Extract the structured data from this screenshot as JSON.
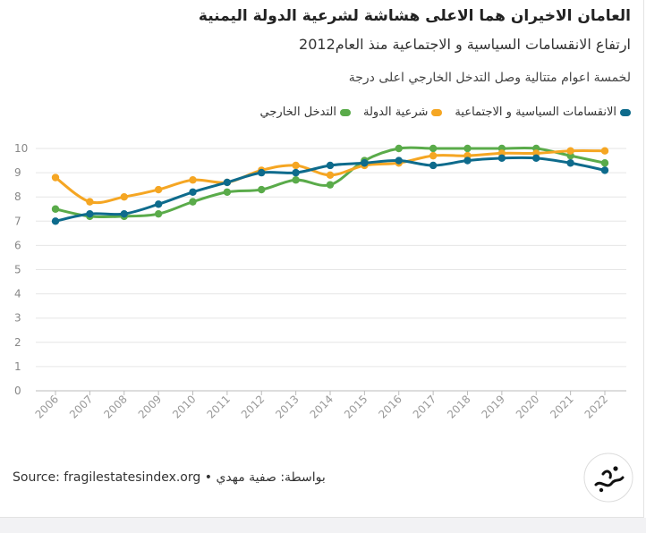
{
  "title": "العامان الاخيران هما الاعلى هشاشة لشرعية الدولة اليمنية",
  "subtitle": "ارتفاع الانقسامات السياسية و الاجتماعية منذ العام2012",
  "note": "لخمسة اعوام متتالية وصل التدخل الخارجي اعلى درجة",
  "footer": {
    "source": "Source: fragilestatesindex.org",
    "separator": " • ",
    "credit": "بواسطة: صفية مهدي"
  },
  "logo": {
    "icon": "brand-logo-icon"
  },
  "chart_data": {
    "type": "line",
    "x": [
      "2006",
      "2007",
      "2008",
      "2009",
      "2010",
      "2011",
      "2012",
      "2013",
      "2014",
      "2015",
      "2016",
      "2017",
      "2018",
      "2019",
      "2020",
      "2021",
      "2022"
    ],
    "ylim": [
      0,
      10
    ],
    "yticks": [
      0,
      1,
      2,
      3,
      4,
      5,
      6,
      7,
      8,
      9,
      10
    ],
    "grid": true,
    "legend_position": "top-right",
    "series": [
      {
        "name": "الانقسامات السياسية و الاجتماعية",
        "color": "#0e6b8c",
        "values": [
          7.0,
          7.3,
          7.3,
          7.7,
          8.2,
          8.6,
          9.0,
          9.0,
          9.3,
          9.4,
          9.5,
          9.3,
          9.5,
          9.6,
          9.6,
          9.4,
          9.1
        ]
      },
      {
        "name": "شرعية الدولة",
        "color": "#f5a623",
        "values": [
          8.8,
          7.8,
          8.0,
          8.3,
          8.7,
          8.6,
          9.1,
          9.3,
          8.9,
          9.3,
          9.4,
          9.7,
          9.7,
          9.8,
          9.8,
          9.9,
          9.9
        ]
      },
      {
        "name": "التدخل الخارجي",
        "color": "#5aab4a",
        "values": [
          7.5,
          7.2,
          7.2,
          7.3,
          7.8,
          8.2,
          8.3,
          8.7,
          8.5,
          9.5,
          10.0,
          10.0,
          10.0,
          10.0,
          10.0,
          9.7,
          9.4
        ]
      }
    ]
  }
}
